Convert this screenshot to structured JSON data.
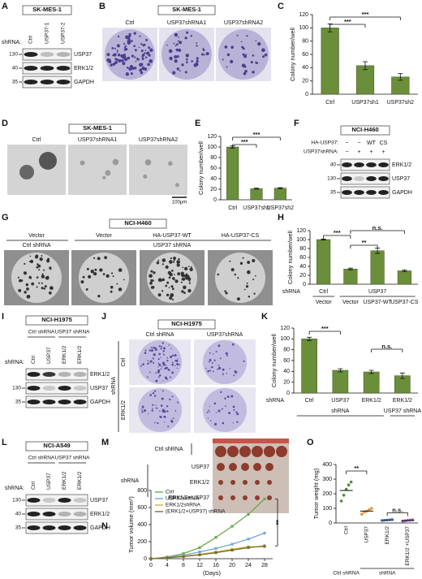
{
  "figure": {
    "panel_labels": [
      "A",
      "B",
      "C",
      "D",
      "E",
      "F",
      "G",
      "H",
      "I",
      "J",
      "K",
      "L",
      "M",
      "N",
      "O"
    ],
    "A": {
      "title": "SK-MES-1",
      "row_label": "shRNA:",
      "lanes": [
        "Ctrl",
        "USP37-1",
        "USP37-2"
      ],
      "bands": [
        "USP37",
        "ERK1/2",
        "GAPDH"
      ],
      "markers": [
        130,
        40,
        35
      ]
    },
    "B": {
      "title": "SK-MES-1",
      "labels": [
        "Ctrl",
        "USP37shRNA1",
        "USP37shRNA2"
      ]
    },
    "D": {
      "title": "SK-MES-1",
      "labels": [
        "Ctrl",
        "USP37shRNA1",
        "USP37shRNA2"
      ],
      "scale": "100μm"
    },
    "F": {
      "title": "NCI-H460",
      "rows": [
        {
          "label": "HA-USP37:",
          "values": [
            "−",
            "−",
            "WT",
            "CS"
          ]
        },
        {
          "label": "USP37shRNA:",
          "values": [
            "−",
            "+",
            "+",
            "+"
          ]
        }
      ],
      "bands": [
        "ERK1/2",
        "USP37",
        "GAPDH"
      ],
      "markers": [
        40,
        130,
        35
      ]
    },
    "G": {
      "title": "NCI-H460",
      "labels": [
        "Vector",
        "Vector",
        "HA-USP37-WT",
        "HA-USP37-CS"
      ],
      "groups": [
        "Ctrl shRNA",
        "USP37 shRNA"
      ]
    },
    "I": {
      "title": "NCI-H1975",
      "groups": [
        "Ctrl shRNA",
        "USP37 shRNA"
      ],
      "row_label": "shRNA:",
      "lanes": [
        "Ctrl",
        "USP37",
        "ERK1/2",
        "ERK1/2"
      ],
      "bands": [
        "ERK1/2",
        "USP37",
        "GAPDH"
      ],
      "markers": [
        130,
        35
      ]
    },
    "J": {
      "title": "NCI-H1975",
      "columns": [
        "Ctrl shRNA",
        "USP37shRNA"
      ],
      "rows": [
        "Ctrl",
        "ERK1/2"
      ],
      "side_label": "shRNA"
    },
    "L": {
      "title": "NCI-A549",
      "groups": [
        "Ctrl shRNA",
        "USP37 shRNA"
      ],
      "row_label": "shRNA:",
      "lanes": [
        "Ctrl",
        "USP37",
        "ERK1/2",
        "ERK1/2"
      ],
      "bands": [
        "USP37",
        "ERK1/2",
        "GAPDH"
      ],
      "markers": [
        130,
        40,
        35
      ]
    },
    "M": {
      "ctrl_label": "Ctrl shRNA",
      "group_label": "shRNA",
      "rows": [
        "USP37",
        "ERK1/2",
        "ERK1/2+USP37"
      ]
    }
  },
  "chart_data": [
    {
      "type": "bar",
      "ylabel": "Colony number/well",
      "categories": [
        "Ctrl",
        "USP37sh1",
        "USP37sh2"
      ],
      "values": [
        100,
        43,
        26
      ],
      "errors": [
        6,
        6,
        5
      ],
      "color": "#6b8e3a",
      "ylim": [
        0,
        120
      ],
      "yticks": [
        0,
        20,
        40,
        60,
        80,
        100,
        120
      ],
      "annotations": [
        "***",
        "***"
      ]
    },
    {
      "type": "bar",
      "ylabel": "Colony number/well",
      "categories": [
        "Ctrl",
        "USP37sh1",
        "USP37sh2"
      ],
      "values": [
        100,
        21,
        22
      ],
      "errors": [
        2,
        1,
        1
      ],
      "color": "#6b8e3a",
      "ylim": [
        0,
        120
      ],
      "yticks": [
        0,
        20,
        40,
        60,
        80,
        100,
        120
      ],
      "annotations": [
        "***",
        "***"
      ]
    },
    {
      "type": "bar",
      "ylabel": "Colony number/well",
      "row_label": "shRNA",
      "groups": [
        "Ctrl",
        "USP37"
      ],
      "categories": [
        "Vector",
        "Vector",
        "USP37-WT",
        "USP37-CS"
      ],
      "values": [
        100,
        34,
        75,
        30
      ],
      "errors": [
        1,
        2,
        6,
        2
      ],
      "color": "#6b8e3a",
      "ylim": [
        0,
        120
      ],
      "yticks": [
        0,
        20,
        40,
        60,
        80,
        100,
        120
      ],
      "annotations": [
        "***",
        "**",
        "n.s."
      ]
    },
    {
      "type": "bar",
      "ylabel": "Colony number/well",
      "row_label": "shRNA",
      "categories": [
        "Ctrl",
        "USP37",
        "ERK1/2",
        "ERK1/2"
      ],
      "groups": [
        "shRNA",
        "USP37 shRNA"
      ],
      "values": [
        100,
        42,
        39,
        32
      ],
      "errors": [
        3,
        3,
        3,
        5
      ],
      "color": "#6b8e3a",
      "ylim": [
        0,
        120
      ],
      "yticks": [
        0,
        20,
        40,
        60,
        80,
        100,
        120
      ],
      "annotations": [
        "***",
        "n.s."
      ]
    },
    {
      "type": "line",
      "ylabel": "Tumor volume (mm³)",
      "xlabel": "(Days)",
      "x": [
        0,
        4,
        8,
        12,
        16,
        20,
        24,
        28
      ],
      "xlim": [
        0,
        30
      ],
      "xticks": [
        0,
        4,
        8,
        12,
        16,
        20,
        24,
        28
      ],
      "ylim": [
        0,
        800
      ],
      "yticks": [
        0,
        200,
        400,
        600,
        800
      ],
      "annotations": [
        "**"
      ],
      "series": [
        {
          "name": "Ctrl",
          "color": "#6aa84f",
          "values": [
            0,
            20,
            60,
            130,
            250,
            380,
            520,
            700
          ]
        },
        {
          "name": "USP37shRNA",
          "color": "#6fa8dc",
          "values": [
            0,
            15,
            40,
            80,
            120,
            170,
            230,
            300
          ]
        },
        {
          "name": "ERK1/2shRNA",
          "color": "#c9b53a",
          "values": [
            0,
            10,
            30,
            50,
            80,
            110,
            140,
            140
          ]
        },
        {
          "name": "(ERK1/2+USP37) shRNA",
          "color": "#7a6a2a",
          "values": [
            0,
            10,
            25,
            45,
            70,
            100,
            130,
            150
          ]
        }
      ]
    },
    {
      "type": "dot",
      "ylabel": "Tumor weight (mg)",
      "categories": [
        "Ctrl",
        "USP37",
        "ERK1/2",
        "ERK1/2 +USP37"
      ],
      "groups": [
        "Ctrl shRNA",
        "shRNA"
      ],
      "colors": [
        "#4e8a3a",
        "#e69138",
        "#6d8fd1",
        "#a05bb0"
      ],
      "points": [
        [
          150,
          190,
          230,
          260,
          280
        ],
        [
          60,
          75,
          80,
          90,
          100
        ],
        [
          15,
          18,
          20,
          22,
          25
        ],
        [
          12,
          15,
          18,
          20,
          22
        ]
      ],
      "means": [
        222,
        81,
        20,
        17
      ],
      "ylim": [
        0,
        400
      ],
      "yticks": [
        0,
        100,
        200,
        300,
        400
      ],
      "annotations": [
        "**",
        "n.s."
      ]
    }
  ]
}
